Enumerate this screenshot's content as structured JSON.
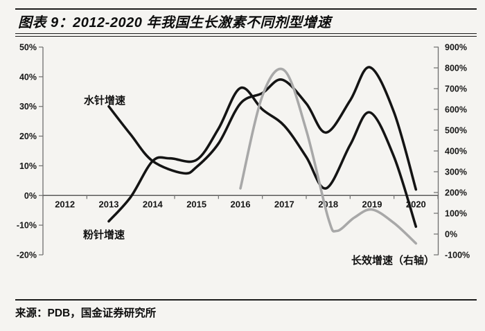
{
  "title": "图表 9：2012-2020 年我国生长激素不同剂型增速",
  "footer": {
    "source": "来源：PDB，国金证券研究所"
  },
  "chart_data": {
    "type": "line",
    "title": "2012-2020 年我国生长激素不同剂型增速",
    "x_categories": [
      2012,
      2013,
      2014,
      2015,
      2016,
      2017,
      2018,
      2019,
      2020
    ],
    "left_axis": {
      "min": -20,
      "max": 50,
      "tick_values": [
        50,
        40,
        30,
        20,
        10,
        0,
        -10,
        -20
      ],
      "tick_labels": [
        "50%",
        "40%",
        "30%",
        "20%",
        "10%",
        "0%",
        "-10%",
        "-20%"
      ]
    },
    "right_axis": {
      "min": -100,
      "max": 900,
      "tick_values": [
        900,
        800,
        700,
        600,
        500,
        400,
        300,
        200,
        100,
        0,
        -100
      ],
      "tick_labels": [
        "900%",
        "800%",
        "700%",
        "600%",
        "500%",
        "400%",
        "300%",
        "200%",
        "100%",
        "0%",
        "-100%"
      ]
    },
    "grid": false,
    "legend_position": "inline-annotations",
    "colors": {
      "black_line": "#141414",
      "gray_line": "#a8a8a8",
      "axis": "#6e6e6e",
      "x_axis": "#5a5a5a"
    },
    "series": [
      {
        "key": "water-injection",
        "name": "水针增速",
        "axis": "left",
        "color": "#141414",
        "points": [
          [
            2013,
            30
          ],
          [
            2013.5,
            20.5
          ],
          [
            2014,
            11.6
          ],
          [
            2014.7,
            7.5
          ],
          [
            2015,
            9.6
          ],
          [
            2015.5,
            17.5
          ],
          [
            2016,
            31
          ],
          [
            2016.5,
            34.5
          ],
          [
            2016.95,
            39
          ],
          [
            2017.5,
            31
          ],
          [
            2017.95,
            21.2
          ],
          [
            2018.5,
            32
          ],
          [
            2018.95,
            43.2
          ],
          [
            2019.5,
            28
          ],
          [
            2020,
            2
          ]
        ]
      },
      {
        "key": "powder-injection",
        "name": "粉针增速",
        "axis": "left",
        "color": "#141414",
        "points": [
          [
            2013,
            -8.7
          ],
          [
            2013.5,
            -0.5
          ],
          [
            2014,
            11.6
          ],
          [
            2014.4,
            12.5
          ],
          [
            2015,
            12
          ],
          [
            2015.5,
            22.5
          ],
          [
            2016,
            36.2
          ],
          [
            2016.5,
            29
          ],
          [
            2017,
            23.5
          ],
          [
            2017.5,
            13
          ],
          [
            2017.95,
            2.4
          ],
          [
            2018.5,
            17
          ],
          [
            2018.95,
            28
          ],
          [
            2019.5,
            13
          ],
          [
            2020,
            -10.5
          ]
        ]
      },
      {
        "key": "long-acting",
        "name": "长效增速（右轴）",
        "axis": "right",
        "color": "#a8a8a8",
        "points": [
          [
            2016,
            220
          ],
          [
            2016.5,
            665
          ],
          [
            2017,
            788
          ],
          [
            2017.5,
            500
          ],
          [
            2018,
            77
          ],
          [
            2018.2,
            15
          ],
          [
            2018.6,
            80
          ],
          [
            2019,
            118
          ],
          [
            2019.5,
            53
          ],
          [
            2020,
            -45
          ]
        ]
      }
    ]
  }
}
